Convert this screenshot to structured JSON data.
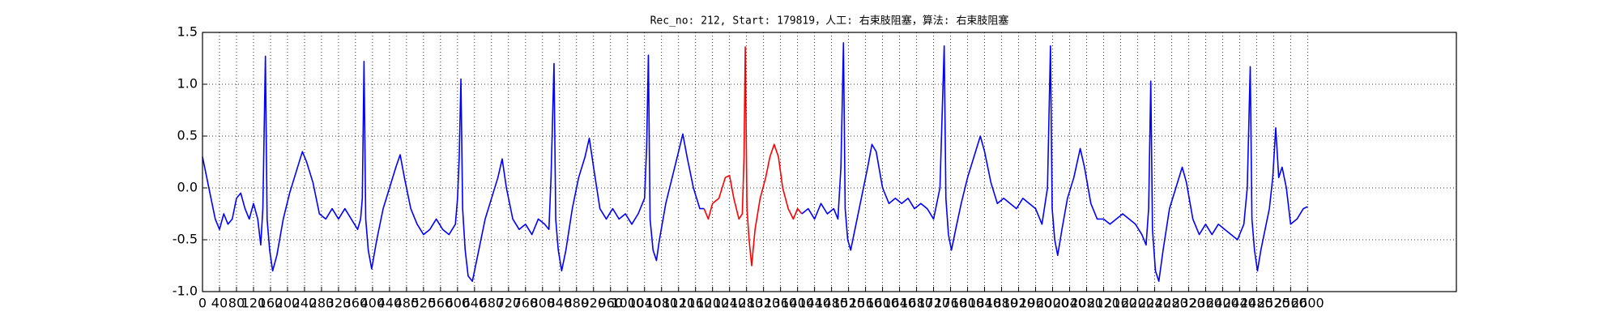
{
  "chart_data": {
    "type": "line",
    "title": "Rec_no: 212, Start: 179819，人工: 右束肢阻塞，算法: 右束肢阻塞",
    "xlim": [
      0,
      2950
    ],
    "ylim": [
      -1,
      1.5
    ],
    "xticks": [
      0,
      40,
      80,
      120,
      160,
      200,
      240,
      280,
      320,
      360,
      400,
      440,
      480,
      520,
      560,
      600,
      640,
      680,
      720,
      760,
      800,
      840,
      880,
      920,
      960,
      1000,
      1040,
      1080,
      1120,
      1160,
      1200,
      1240,
      1280,
      1320,
      1360,
      1400,
      1440,
      1480,
      1520,
      1560,
      1600,
      1640,
      1680,
      1720,
      1760,
      1800,
      1840,
      1880,
      1920,
      1960,
      2000,
      2040,
      2080,
      2120,
      2160,
      2200,
      2240,
      2280,
      2320,
      2360,
      2400,
      2440,
      2480,
      2520,
      2560,
      2600
    ],
    "yticks": [
      {
        "value": -1,
        "label": "-1.0"
      },
      -0.5,
      {
        "value": 0,
        "label": "0.0"
      },
      0.5,
      {
        "value": 1,
        "label": "1.0"
      },
      1.5
    ],
    "grid": true,
    "series": [
      {
        "color": "#0000ff",
        "x": [
          0,
          10,
          20,
          30,
          40,
          50,
          60,
          70,
          80,
          90,
          100,
          110,
          120,
          130,
          137,
          142,
          148,
          152,
          158,
          165,
          175,
          190,
          205,
          220,
          235,
          245,
          260,
          275,
          290,
          305,
          320,
          335,
          350,
          365,
          372,
          376,
          380,
          384,
          390,
          398,
          410,
          425,
          440,
          455,
          465,
          475,
          490,
          505,
          520,
          535,
          550,
          565,
          580,
          595,
          600,
          604,
          608,
          612,
          618,
          625,
          635,
          650,
          665,
          680,
          695,
          705,
          715,
          730,
          745,
          760,
          775,
          790,
          805,
          815,
          820,
          827,
          831,
          837,
          845,
          855,
          870,
          885,
          900,
          910,
          920,
          935,
          950,
          965,
          980,
          995,
          1010,
          1025,
          1040,
          1045,
          1049,
          1053,
          1060,
          1068,
          1075,
          1090,
          1105,
          1120,
          1130,
          1140,
          1155,
          1170,
          1180
        ],
        "values": [
          0.3,
          0.1,
          -0.1,
          -0.3,
          -0.4,
          -0.25,
          -0.35,
          -0.3,
          -0.1,
          -0.05,
          -0.2,
          -0.3,
          -0.15,
          -0.3,
          -0.55,
          -0.2,
          1.27,
          -0.3,
          -0.6,
          -0.8,
          -0.65,
          -0.3,
          -0.05,
          0.15,
          0.35,
          0.25,
          0.05,
          -0.25,
          -0.3,
          -0.2,
          -0.3,
          -0.2,
          -0.3,
          -0.4,
          -0.3,
          -0.1,
          1.22,
          -0.3,
          -0.6,
          -0.78,
          -0.5,
          -0.2,
          0.0,
          0.2,
          0.32,
          0.1,
          -0.2,
          -0.35,
          -0.45,
          -0.4,
          -0.3,
          -0.4,
          -0.45,
          -0.35,
          -0.1,
          0.3,
          1.05,
          -0.2,
          -0.6,
          -0.85,
          -0.9,
          -0.6,
          -0.3,
          -0.1,
          0.1,
          0.28,
          0.0,
          -0.3,
          -0.4,
          -0.35,
          -0.45,
          -0.3,
          -0.35,
          -0.4,
          0.1,
          1.2,
          -0.3,
          -0.6,
          -0.8,
          -0.6,
          -0.2,
          0.1,
          0.3,
          0.48,
          0.2,
          -0.2,
          -0.3,
          -0.2,
          -0.3,
          -0.25,
          -0.35,
          -0.25,
          -0.1,
          0.4,
          1.28,
          -0.3,
          -0.6,
          -0.7,
          -0.5,
          -0.15,
          0.1,
          0.35,
          0.52,
          0.3,
          0.0,
          -0.2,
          -0.2
        ]
      },
      {
        "color": "#ff0000",
        "x": [
          1180,
          1190,
          1200,
          1215,
          1230,
          1240,
          1250,
          1262,
          1270,
          1274,
          1277,
          1281,
          1286,
          1292,
          1300,
          1312,
          1325,
          1335,
          1345,
          1355,
          1365,
          1378,
          1390,
          1400,
          1410
        ],
        "values": [
          -0.2,
          -0.3,
          -0.15,
          -0.1,
          0.1,
          0.12,
          -0.1,
          -0.3,
          -0.25,
          0.3,
          1.36,
          -0.2,
          -0.5,
          -0.75,
          -0.4,
          -0.1,
          0.1,
          0.3,
          0.42,
          0.3,
          0.0,
          -0.2,
          -0.3,
          -0.2,
          -0.25
        ]
      },
      {
        "color": "#0000ff",
        "x": [
          1410,
          1425,
          1440,
          1455,
          1470,
          1485,
          1495,
          1502,
          1508,
          1512,
          1518,
          1525,
          1535,
          1550,
          1565,
          1575,
          1585,
          1600,
          1615,
          1630,
          1645,
          1660,
          1675,
          1690,
          1705,
          1720,
          1735,
          1745,
          1749,
          1755,
          1762,
          1772,
          1785,
          1800,
          1815,
          1830,
          1840,
          1855,
          1870,
          1885,
          1900,
          1915,
          1930,
          1945,
          1960,
          1975,
          1988,
          1995,
          1999,
          2005,
          2012,
          2022,
          2035,
          2050,
          2065,
          2075,
          2090,
          2105,
          2120,
          2135,
          2150,
          2165,
          2180,
          2195,
          2210,
          2220,
          2226,
          2231,
          2235,
          2242,
          2250,
          2260,
          2275,
          2290,
          2305,
          2315,
          2330,
          2345,
          2360,
          2375,
          2390,
          2405,
          2420,
          2435,
          2450,
          2458,
          2465,
          2469,
          2475,
          2482,
          2490,
          2500,
          2510,
          2518,
          2525,
          2532,
          2540,
          2550,
          2560,
          2575,
          2590,
          2600
        ],
        "values": [
          -0.25,
          -0.2,
          -0.3,
          -0.15,
          -0.25,
          -0.2,
          -0.3,
          0.2,
          1.4,
          -0.2,
          -0.5,
          -0.6,
          -0.4,
          -0.1,
          0.2,
          0.42,
          0.35,
          0.0,
          -0.15,
          -0.1,
          -0.15,
          -0.1,
          -0.2,
          -0.15,
          -0.2,
          -0.3,
          0.0,
          1.37,
          -0.1,
          -0.45,
          -0.6,
          -0.4,
          -0.15,
          0.1,
          0.3,
          0.5,
          0.35,
          0.05,
          -0.15,
          -0.1,
          -0.15,
          -0.2,
          -0.1,
          -0.15,
          -0.2,
          -0.35,
          0.0,
          1.37,
          -0.2,
          -0.5,
          -0.65,
          -0.4,
          -0.1,
          0.1,
          0.38,
          0.2,
          -0.15,
          -0.3,
          -0.3,
          -0.35,
          -0.3,
          -0.25,
          -0.3,
          -0.35,
          -0.45,
          -0.55,
          -0.2,
          1.03,
          -0.4,
          -0.8,
          -0.9,
          -0.6,
          -0.2,
          0.0,
          0.2,
          0.05,
          -0.3,
          -0.45,
          -0.35,
          -0.45,
          -0.35,
          -0.4,
          -0.45,
          -0.5,
          -0.35,
          0.0,
          1.17,
          -0.3,
          -0.6,
          -0.8,
          -0.6,
          -0.4,
          -0.2,
          0.1,
          0.58,
          0.1,
          0.2,
          0.0,
          -0.35,
          -0.3,
          -0.2,
          -0.18
        ]
      }
    ]
  }
}
